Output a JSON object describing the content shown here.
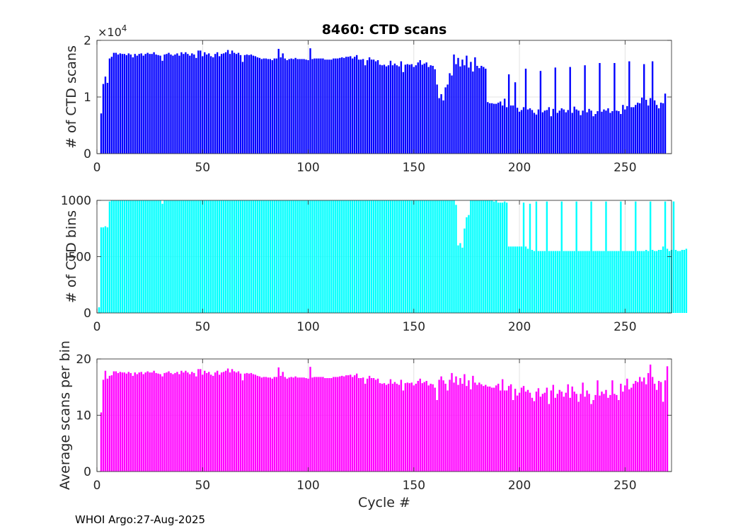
{
  "figure": {
    "footer": "WHOI Argo:27-Aug-2025"
  },
  "chart_data": [
    {
      "type": "bar",
      "title": "8460: CTD scans",
      "xlabel": "",
      "ylabel": "# of CTD scans",
      "exponent_label": "×10",
      "exponent_power": "4",
      "color": "#0000ff",
      "xlim": [
        0,
        272
      ],
      "ylim": [
        0,
        20000
      ],
      "x_ticks": [
        0,
        50,
        100,
        150,
        200,
        250
      ],
      "y_ticks": [
        0,
        10000,
        20000
      ],
      "y_tick_labels": [
        "0",
        "1",
        "2"
      ],
      "x": "cycles 1-272",
      "values": [
        0,
        7100,
        12300,
        13600,
        12500,
        16800,
        17100,
        17800,
        17800,
        17500,
        17700,
        17600,
        17600,
        17400,
        17700,
        17500,
        17000,
        17600,
        17300,
        17600,
        17700,
        17300,
        17600,
        17800,
        17600,
        17600,
        17900,
        17500,
        17400,
        17300,
        16400,
        17500,
        17600,
        17800,
        17500,
        17300,
        17500,
        17700,
        17300,
        17900,
        17600,
        17900,
        17600,
        17300,
        17700,
        17500,
        16900,
        18200,
        18200,
        17200,
        17900,
        17500,
        17700,
        17200,
        17000,
        17600,
        17900,
        17200,
        17600,
        17700,
        17900,
        18300,
        17600,
        18200,
        17800,
        17600,
        17800,
        17400,
        16200,
        17400,
        17500,
        17400,
        17500,
        17300,
        17200,
        17000,
        16900,
        16700,
        16800,
        16800,
        16700,
        16700,
        16500,
        16800,
        16800,
        18500,
        17000,
        17700,
        16800,
        16500,
        16700,
        16800,
        16700,
        16900,
        16700,
        16700,
        16700,
        16700,
        16600,
        16500,
        18600,
        16700,
        16800,
        16800,
        16800,
        16800,
        16800,
        16600,
        16600,
        16600,
        16600,
        16800,
        16800,
        16800,
        16900,
        17000,
        16900,
        17100,
        17100,
        17200,
        16800,
        17100,
        17400,
        16600,
        16600,
        16700,
        15600,
        16500,
        17000,
        16600,
        16600,
        16300,
        16500,
        15700,
        15600,
        15700,
        15400,
        15600,
        16400,
        15600,
        15900,
        15600,
        15400,
        16300,
        14400,
        15700,
        15800,
        15700,
        15800,
        15300,
        15600,
        16100,
        16500,
        15700,
        15900,
        16100,
        15300,
        15600,
        15500,
        14900,
        12200,
        9800,
        10500,
        9400,
        11700,
        12200,
        14200,
        13800,
        17500,
        15800,
        16900,
        15400,
        16600,
        15600,
        17300,
        15200,
        16200,
        14500,
        17000,
        15500,
        15100,
        15500,
        15300,
        15000,
        9100,
        8900,
        8900,
        8800,
        8800,
        9000,
        9200,
        8500,
        9700,
        8200,
        14000,
        8500,
        8500,
        12600,
        8100,
        7400,
        7700,
        8200,
        15000,
        7800,
        8000,
        7700,
        7200,
        6900,
        7800,
        14600,
        7300,
        7600,
        7700,
        8200,
        6600,
        7900,
        15200,
        7200,
        7600,
        8000,
        7800,
        7300,
        7700,
        15300,
        7200,
        8300,
        7800,
        7600,
        6800,
        7600,
        15600,
        7300,
        7900,
        7600,
        6600,
        7000,
        7500,
        16000,
        7400,
        7800,
        7600,
        8000,
        7200,
        7500,
        16000,
        7600,
        7500,
        7000,
        8600,
        7800,
        8400,
        16300,
        8200,
        8200,
        8600,
        9000,
        8900,
        9900,
        15800,
        9500,
        8500,
        9800,
        16300,
        9400,
        8600,
        8000,
        9000,
        8900,
        10600
      ]
    },
    {
      "type": "bar",
      "xlabel": "",
      "ylabel": "# of CTD bins",
      "color": "#00ffff",
      "xlim": [
        0,
        272
      ],
      "ylim": [
        0,
        1000
      ],
      "x_ticks": [
        0,
        50,
        100,
        150,
        200,
        250
      ],
      "y_ticks": [
        0,
        500,
        1000
      ],
      "y_tick_labels": [
        "0",
        "500",
        "1000"
      ],
      "x": "cycles 1-272",
      "values": [
        50,
        760,
        760,
        770,
        760,
        990,
        1000,
        1000,
        1000,
        1000,
        1000,
        1000,
        1000,
        1000,
        1000,
        1000,
        1000,
        1000,
        1000,
        1000,
        1000,
        1000,
        1000,
        1000,
        1000,
        1000,
        1000,
        1000,
        1000,
        1000,
        970,
        1000,
        1000,
        1000,
        1000,
        1000,
        1000,
        1000,
        1000,
        1000,
        1000,
        1000,
        1000,
        1000,
        1000,
        1000,
        1000,
        1000,
        1000,
        1000,
        1000,
        1000,
        1000,
        1000,
        1000,
        1000,
        1000,
        1000,
        1000,
        1000,
        1000,
        1000,
        1000,
        1000,
        1000,
        1000,
        1000,
        1000,
        1000,
        1000,
        1000,
        1000,
        1000,
        1000,
        1000,
        1000,
        1000,
        1000,
        1000,
        1000,
        1000,
        1000,
        1000,
        1000,
        1000,
        1000,
        1000,
        1000,
        1000,
        1000,
        1000,
        1000,
        1000,
        1000,
        1000,
        1000,
        1000,
        1000,
        1000,
        1000,
        1000,
        1000,
        1000,
        1000,
        1000,
        1000,
        1000,
        1000,
        1000,
        1000,
        1000,
        1000,
        1000,
        1000,
        1000,
        1000,
        1000,
        1000,
        1000,
        1000,
        1000,
        1000,
        1000,
        1000,
        1000,
        1000,
        1000,
        1000,
        1000,
        1000,
        1000,
        1000,
        1000,
        1000,
        1000,
        1000,
        1000,
        1000,
        1000,
        1000,
        1000,
        1000,
        1000,
        1000,
        1000,
        1000,
        1000,
        1000,
        1000,
        1000,
        1000,
        1000,
        1000,
        1000,
        1000,
        1000,
        1000,
        1000,
        1000,
        1000,
        1000,
        1000,
        1000,
        1000,
        1000,
        1000,
        1000,
        1000,
        1000,
        960,
        600,
        620,
        580,
        750,
        850,
        870,
        1000,
        1000,
        1000,
        1000,
        1000,
        1000,
        1000,
        1000,
        1000,
        1000,
        1000,
        990,
        1000,
        980,
        980,
        980,
        990,
        980,
        590,
        590,
        590,
        590,
        590,
        590,
        590,
        980,
        590,
        570,
        970,
        560,
        550,
        990,
        550,
        550,
        550,
        550,
        990,
        550,
        550,
        550,
        550,
        550,
        550,
        990,
        550,
        550,
        550,
        550,
        550,
        550,
        990,
        550,
        550,
        550,
        550,
        550,
        550,
        990,
        550,
        550,
        550,
        550,
        550,
        550,
        990,
        550,
        550,
        550,
        550,
        550,
        550,
        990,
        550,
        550,
        550,
        550,
        550,
        550,
        990,
        550,
        550,
        550,
        550,
        560,
        550,
        990,
        560,
        550,
        550,
        560,
        560,
        590,
        990,
        570,
        550,
        560,
        990,
        560,
        550,
        550,
        560,
        560,
        570
      ]
    },
    {
      "type": "bar",
      "xlabel": "Cycle #",
      "ylabel": "Average scans per bin",
      "color": "#ff00ff",
      "xlim": [
        0,
        272
      ],
      "ylim": [
        0,
        20
      ],
      "x_ticks": [
        0,
        50,
        100,
        150,
        200,
        250
      ],
      "y_ticks": [
        0,
        10,
        20
      ],
      "y_tick_labels": [
        "0",
        "10",
        "20"
      ],
      "x": "cycles 1-272",
      "values": [
        0,
        10.5,
        16.3,
        17.9,
        16.5,
        17.0,
        17.1,
        17.8,
        17.8,
        17.5,
        17.7,
        17.6,
        17.6,
        17.4,
        17.7,
        17.5,
        17.0,
        17.6,
        17.3,
        17.6,
        17.7,
        17.3,
        17.6,
        17.8,
        17.6,
        17.6,
        17.9,
        17.5,
        17.4,
        17.3,
        16.9,
        17.5,
        17.6,
        17.8,
        17.5,
        17.3,
        17.5,
        17.7,
        17.3,
        17.9,
        17.6,
        17.9,
        17.6,
        17.3,
        17.7,
        17.5,
        16.9,
        18.2,
        18.2,
        17.2,
        17.9,
        17.5,
        17.7,
        17.2,
        17.0,
        17.6,
        17.9,
        17.2,
        17.6,
        17.7,
        17.9,
        18.3,
        17.6,
        18.2,
        17.8,
        17.6,
        17.8,
        17.4,
        16.2,
        17.4,
        17.5,
        17.4,
        17.5,
        17.3,
        17.2,
        17.0,
        16.9,
        16.7,
        16.8,
        16.8,
        16.7,
        16.7,
        16.5,
        16.8,
        16.8,
        18.5,
        17.0,
        17.7,
        16.8,
        16.5,
        16.7,
        16.8,
        16.7,
        16.9,
        16.7,
        16.7,
        16.7,
        16.7,
        16.6,
        16.5,
        18.6,
        16.7,
        16.8,
        16.8,
        16.8,
        16.8,
        16.8,
        16.6,
        16.6,
        16.6,
        16.6,
        16.8,
        16.8,
        16.8,
        16.9,
        17.0,
        16.9,
        17.1,
        17.1,
        17.2,
        16.8,
        17.1,
        17.4,
        16.6,
        16.6,
        16.7,
        15.6,
        16.5,
        17.0,
        16.6,
        16.6,
        16.3,
        16.5,
        15.7,
        15.6,
        15.7,
        15.4,
        15.6,
        16.4,
        15.6,
        15.9,
        15.6,
        15.4,
        16.3,
        14.4,
        15.7,
        15.8,
        15.7,
        15.8,
        15.3,
        15.6,
        16.1,
        16.5,
        15.7,
        15.9,
        16.1,
        15.3,
        15.6,
        15.5,
        14.9,
        12.7,
        16.3,
        16.9,
        16.2,
        15.6,
        14.4,
        16.3,
        17.5,
        15.8,
        16.9,
        15.4,
        16.6,
        15.6,
        17.3,
        15.2,
        16.2,
        14.6,
        17.0,
        15.8,
        15.4,
        15.8,
        15.5,
        15.2,
        15.4,
        15.1,
        15.1,
        14.9,
        14.9,
        15.3,
        15.6,
        14.4,
        16.4,
        14.4,
        14.4,
        15.2,
        15.5,
        12.7,
        14.7,
        13.5,
        14.0,
        14.9,
        15.2,
        14.2,
        14.5,
        14.0,
        13.1,
        12.5,
        14.2,
        14.8,
        13.3,
        13.8,
        14.0,
        14.9,
        12.0,
        14.4,
        15.4,
        13.1,
        13.8,
        14.5,
        14.2,
        13.3,
        14.0,
        15.5,
        13.1,
        15.1,
        14.2,
        13.8,
        12.4,
        13.8,
        15.8,
        13.3,
        14.4,
        13.8,
        12.0,
        12.7,
        13.6,
        16.2,
        13.5,
        14.2,
        13.8,
        14.5,
        13.1,
        13.6,
        16.2,
        13.8,
        13.6,
        12.7,
        15.6,
        14.2,
        15.3,
        16.5,
        14.6,
        14.9,
        15.6,
        16.1,
        15.9,
        16.8,
        16.0,
        16.7,
        15.5,
        17.5,
        19.0,
        16.8,
        15.6,
        14.5,
        16.1,
        15.9,
        12.4,
        16.2,
        18.7
      ]
    }
  ]
}
